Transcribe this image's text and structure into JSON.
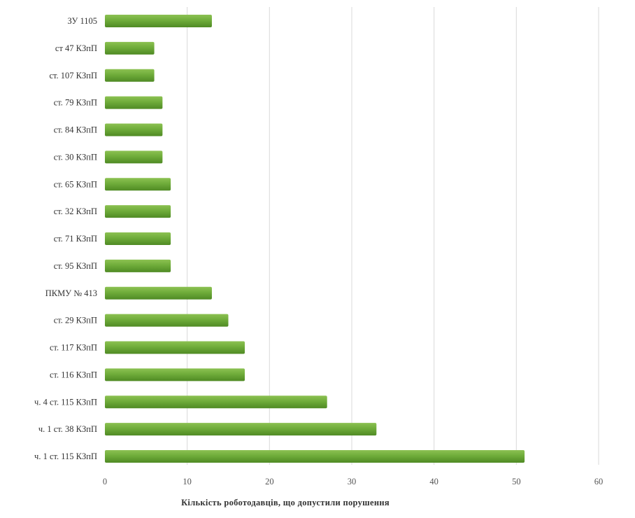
{
  "chart_data": {
    "type": "bar",
    "orientation": "horizontal",
    "categories": [
      "ЗУ 1105",
      "ст 47 КЗпП",
      "ст. 107 КЗпП",
      "ст. 79 КЗпП",
      "ст. 84 КЗпП",
      "ст. 30 КЗпП",
      "ст. 65 КЗпП",
      "ст. 32 КЗпП",
      "ст. 71 КЗпП",
      "ст. 95 КЗпП",
      "ПКМУ № 413",
      "ст. 29 КЗпП",
      "ст. 117 КЗпП",
      "ст. 116 КЗпП",
      "ч. 4 ст. 115 КЗпП",
      "ч. 1 ст. 38 КЗпП",
      "ч. 1 ст. 115 КЗпП"
    ],
    "values": [
      13,
      6,
      6,
      7,
      7,
      7,
      8,
      8,
      8,
      8,
      13,
      15,
      17,
      17,
      27,
      33,
      51
    ],
    "xlabel": "Кількість роботодавців,  що допустили  порушення",
    "xlim": [
      0,
      60
    ],
    "xticks": [
      0,
      10,
      20,
      30,
      40,
      50,
      60
    ],
    "grid": "vertical",
    "legend": "none",
    "colors": {
      "bar_top": "#8cc152",
      "bar_mid": "#6fac3a",
      "bar_bottom": "#4f8a24",
      "grid": "#d9d9d9"
    }
  }
}
